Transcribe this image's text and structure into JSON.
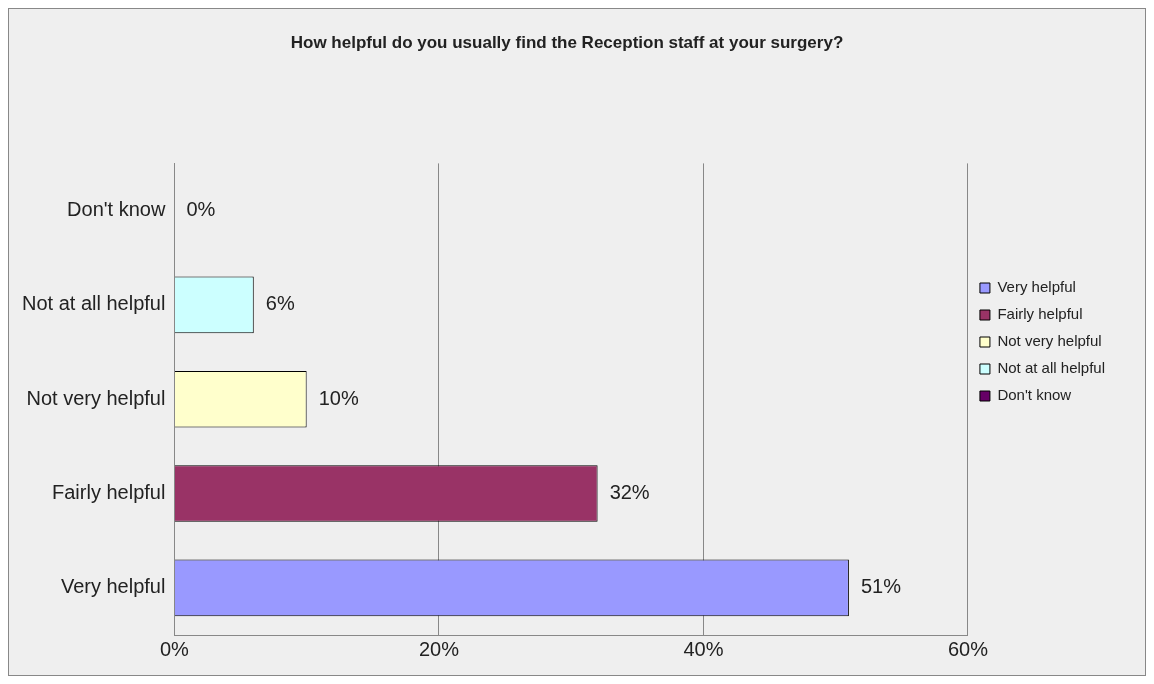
{
  "chart_data": {
    "type": "bar",
    "orientation": "horizontal",
    "title": "How helpful do you usually find the Reception staff at your surgery?",
    "categories": [
      "Don't know",
      "Not at all helpful",
      "Not very helpful",
      "Fairly helpful",
      "Very helpful"
    ],
    "series": [
      {
        "name": "Very helpful",
        "color": "#9999ff",
        "values": [
          null,
          null,
          null,
          null,
          51
        ],
        "value_labels": [
          null,
          null,
          null,
          null,
          "51%"
        ]
      },
      {
        "name": "Fairly helpful",
        "color": "#993366",
        "values": [
          null,
          null,
          null,
          32,
          null
        ],
        "value_labels": [
          null,
          null,
          null,
          "32%",
          null
        ]
      },
      {
        "name": "Not very helpful",
        "color": "#ffffcc",
        "values": [
          null,
          null,
          10,
          null,
          null
        ],
        "value_labels": [
          null,
          null,
          "10%",
          null,
          null
        ]
      },
      {
        "name": "Not at all helpful",
        "color": "#ccffff",
        "values": [
          null,
          6,
          null,
          null,
          null
        ],
        "value_labels": [
          null,
          "6%",
          null,
          null,
          null
        ]
      },
      {
        "name": "Don't know",
        "color": "#660066",
        "values": [
          0,
          null,
          null,
          null,
          null
        ],
        "value_labels": [
          "0%",
          null,
          null,
          null,
          null
        ]
      }
    ],
    "xlim": [
      0,
      60
    ],
    "xticks": [
      {
        "value": 0,
        "label": "0%"
      },
      {
        "value": 20,
        "label": "20%"
      },
      {
        "value": 40,
        "label": "40%"
      },
      {
        "value": 60,
        "label": "60%"
      }
    ],
    "grid": "x",
    "legend": "right"
  }
}
